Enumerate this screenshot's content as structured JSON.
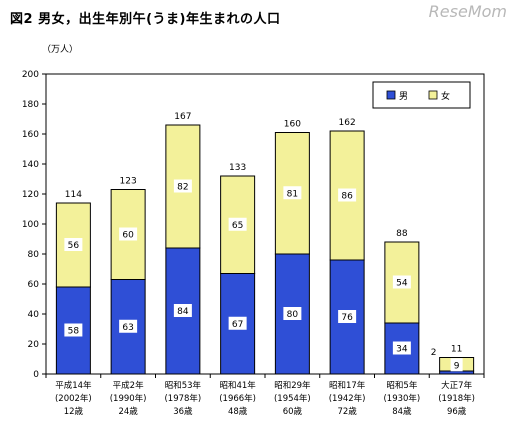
{
  "title": "図2 男女，出生年別午(うま)年生まれの人口",
  "watermark": "ReseMom",
  "chart_data": {
    "type": "bar",
    "stacked": true,
    "unit_label": "（万人）",
    "ylim": [
      0,
      200
    ],
    "yticks": [
      0,
      20,
      40,
      60,
      80,
      100,
      120,
      140,
      160,
      180,
      200
    ],
    "categories": [
      [
        "平成14年",
        "(2002年)",
        "12歳"
      ],
      [
        "平成2年",
        "(1990年)",
        "24歳"
      ],
      [
        "昭和53年",
        "(1978年)",
        "36歳"
      ],
      [
        "昭和41年",
        "(1966年)",
        "48歳"
      ],
      [
        "昭和29年",
        "(1954年)",
        "60歳"
      ],
      [
        "昭和17年",
        "(1942年)",
        "72歳"
      ],
      [
        "昭和5年",
        "(1930年)",
        "84歳"
      ],
      [
        "大正7年",
        "(1918年)",
        "96歳"
      ]
    ],
    "series": [
      {
        "name": "男",
        "color": "#2f4fd6",
        "values": [
          58,
          63,
          84,
          67,
          80,
          76,
          34,
          2
        ]
      },
      {
        "name": "女",
        "color": "#f3f19a",
        "values": [
          56,
          60,
          82,
          65,
          81,
          86,
          54,
          9
        ]
      }
    ],
    "totals": [
      114,
      123,
      167,
      133,
      160,
      162,
      88,
      11
    ],
    "legend_position": "top-right",
    "grid": false
  }
}
